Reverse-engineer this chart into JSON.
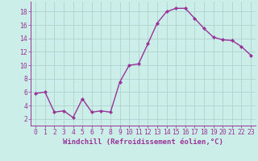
{
  "x": [
    0,
    1,
    2,
    3,
    4,
    5,
    6,
    7,
    8,
    9,
    10,
    11,
    12,
    13,
    14,
    15,
    16,
    17,
    18,
    19,
    20,
    21,
    22,
    23
  ],
  "y": [
    5.8,
    6.0,
    3.0,
    3.2,
    2.2,
    5.0,
    3.0,
    3.2,
    3.0,
    7.5,
    10.0,
    10.2,
    13.2,
    16.3,
    18.0,
    18.5,
    18.5,
    17.0,
    15.5,
    14.2,
    13.8,
    13.7,
    12.8,
    11.5
  ],
  "line_color": "#993399",
  "marker": "D",
  "marker_size": 2.0,
  "line_width": 1.0,
  "bg_color": "#cceee8",
  "grid_color": "#aacccc",
  "xlabel": "Windchill (Refroidissement éolien,°C)",
  "xlabel_color": "#993399",
  "xtick_labels": [
    "0",
    "1",
    "2",
    "3",
    "4",
    "5",
    "6",
    "7",
    "8",
    "9",
    "10",
    "11",
    "12",
    "13",
    "14",
    "15",
    "16",
    "17",
    "18",
    "19",
    "20",
    "21",
    "22",
    "23"
  ],
  "ytick_values": [
    2,
    4,
    6,
    8,
    10,
    12,
    14,
    16,
    18
  ],
  "ylim": [
    1.0,
    19.5
  ],
  "xlim": [
    -0.5,
    23.5
  ],
  "tick_color": "#993399",
  "tick_label_color": "#993399",
  "xlabel_fontsize": 6.5,
  "tick_fontsize": 5.8
}
